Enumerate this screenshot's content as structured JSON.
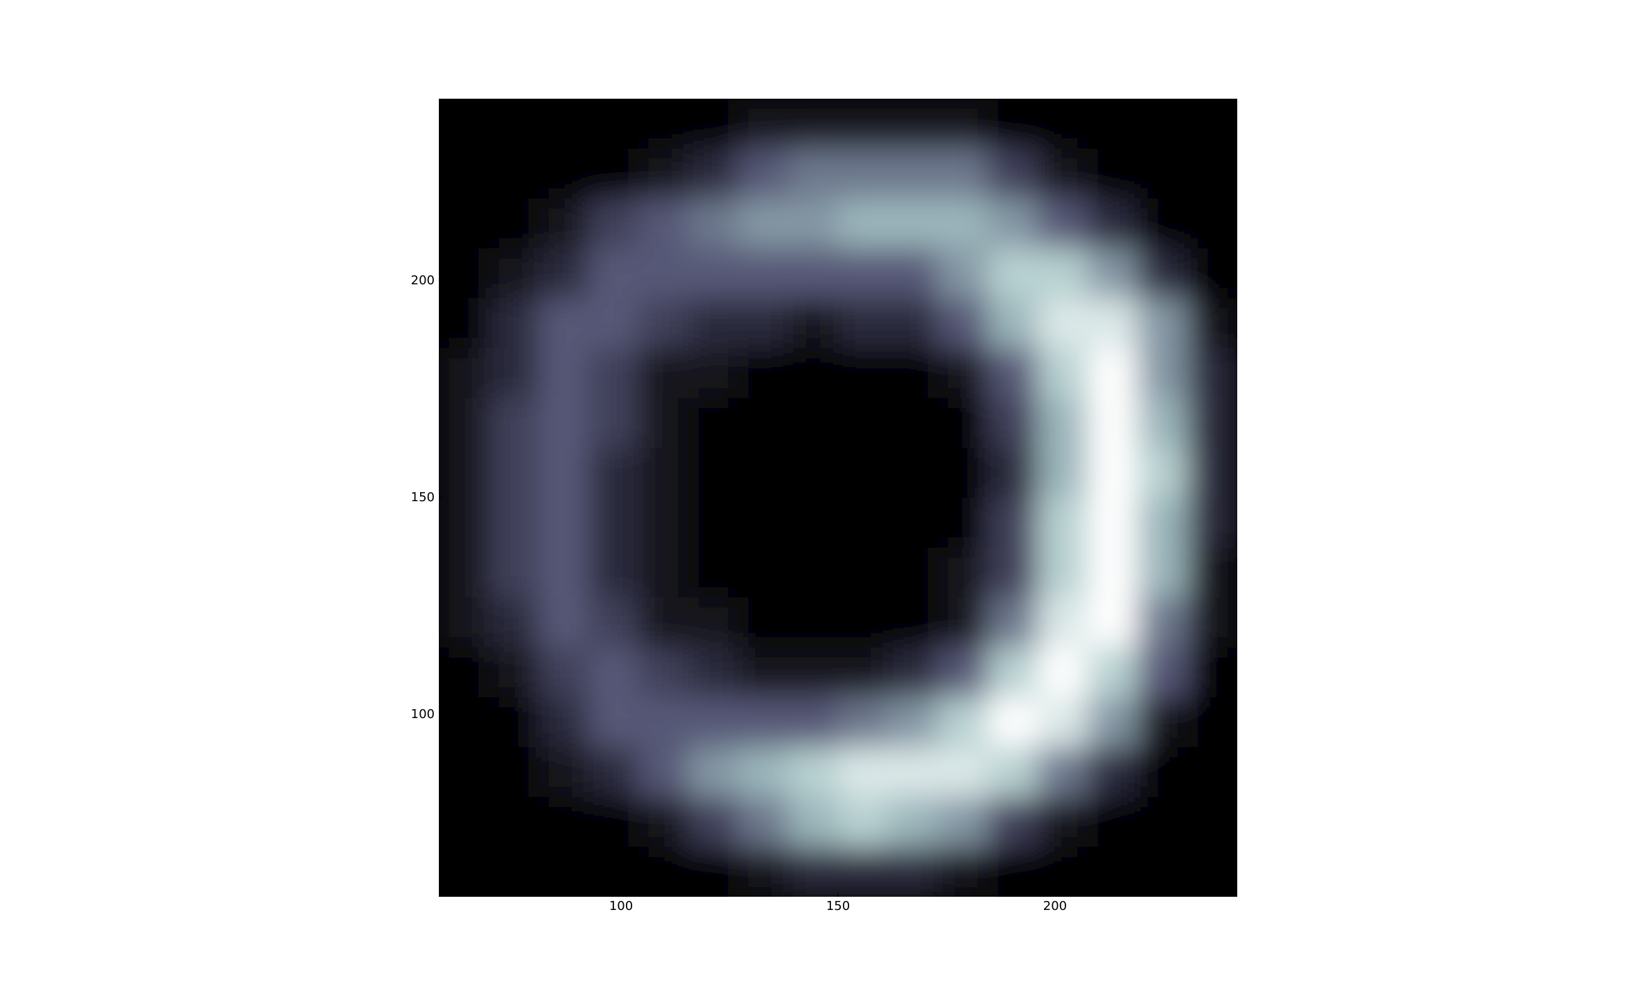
{
  "chart_data": {
    "type": "heatmap",
    "colormap": "bone",
    "xlim": [
      58,
      242
    ],
    "ylim": [
      58,
      242
    ],
    "xticks": [
      100,
      150,
      200
    ],
    "yticks": [
      100,
      150,
      200
    ],
    "z": [
      [
        0,
        0,
        0,
        0,
        0,
        0,
        1,
        1,
        1,
        1,
        1,
        0,
        0,
        0,
        0,
        0
      ],
      [
        0,
        0,
        0,
        0,
        1,
        2,
        4,
        5,
        5,
        5,
        5,
        3,
        1,
        0,
        0,
        0
      ],
      [
        0,
        0,
        1,
        3,
        4,
        5,
        6,
        6,
        7,
        7,
        7,
        6,
        4,
        2,
        0,
        0
      ],
      [
        0,
        1,
        2,
        4,
        4,
        4,
        4,
        4,
        4,
        4,
        6,
        8,
        8,
        6,
        2,
        0
      ],
      [
        0,
        2,
        4,
        4,
        3,
        2,
        2,
        1,
        2,
        2,
        4,
        7,
        9,
        9,
        6,
        1
      ],
      [
        1,
        2,
        4,
        3,
        1,
        1,
        0,
        0,
        0,
        0,
        1,
        4,
        8,
        10,
        6,
        2
      ],
      [
        1,
        3,
        4,
        3,
        1,
        0,
        0,
        0,
        0,
        0,
        0,
        3,
        7,
        10,
        7,
        2
      ],
      [
        1,
        3,
        4,
        2,
        1,
        0,
        0,
        0,
        0,
        0,
        0,
        2,
        7,
        10,
        8,
        2
      ],
      [
        1,
        3,
        4,
        2,
        1,
        0,
        0,
        0,
        0,
        0,
        0,
        3,
        8,
        10,
        7,
        2
      ],
      [
        1,
        3,
        4,
        2,
        1,
        0,
        0,
        0,
        0,
        0,
        1,
        3,
        8,
        10,
        7,
        1
      ],
      [
        1,
        2,
        4,
        3,
        1,
        1,
        0,
        0,
        0,
        0,
        1,
        5,
        9,
        10,
        5,
        1
      ],
      [
        0,
        1,
        3,
        4,
        3,
        2,
        1,
        1,
        1,
        2,
        4,
        8,
        10,
        8,
        4,
        0
      ],
      [
        0,
        0,
        2,
        4,
        4,
        4,
        4,
        4,
        5,
        6,
        8,
        10,
        9,
        6,
        1,
        0
      ],
      [
        0,
        0,
        1,
        2,
        4,
        6,
        7,
        8,
        9,
        9,
        9,
        8,
        5,
        2,
        0,
        0
      ],
      [
        0,
        0,
        0,
        0,
        1,
        3,
        5,
        7,
        8,
        7,
        6,
        3,
        1,
        0,
        0,
        0
      ],
      [
        0,
        0,
        0,
        0,
        0,
        0,
        1,
        2,
        2,
        2,
        1,
        0,
        0,
        0,
        0,
        0
      ]
    ]
  }
}
